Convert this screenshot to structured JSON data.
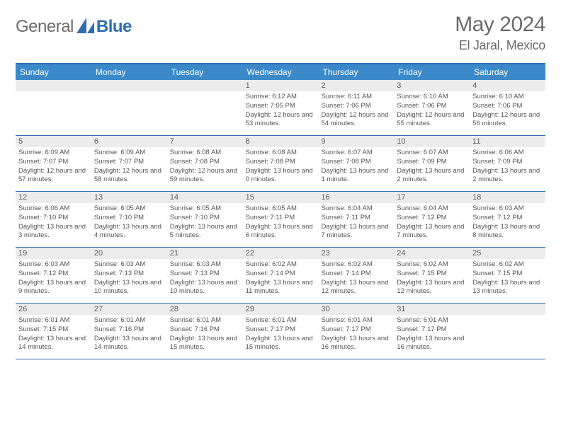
{
  "brand": {
    "text_a": "General",
    "text_b": "Blue"
  },
  "title": "May 2024",
  "location": "El Jaral, Mexico",
  "colors": {
    "header_bar": "#3b89c9",
    "rule": "#2f6fb0",
    "daynum_bg": "#ececec",
    "text_muted": "#6b6b6b",
    "cell_text": "#555555",
    "white": "#ffffff"
  },
  "typography": {
    "title_fontsize": 30,
    "location_fontsize": 18,
    "dayhead_fontsize": 12,
    "daynum_fontsize": 11,
    "info_fontsize": 9.5
  },
  "day_headers": [
    "Sunday",
    "Monday",
    "Tuesday",
    "Wednesday",
    "Thursday",
    "Friday",
    "Saturday"
  ],
  "weeks": [
    [
      {
        "n": "",
        "sr": "",
        "ss": "",
        "dl": ""
      },
      {
        "n": "",
        "sr": "",
        "ss": "",
        "dl": ""
      },
      {
        "n": "",
        "sr": "",
        "ss": "",
        "dl": ""
      },
      {
        "n": "1",
        "sr": "Sunrise: 6:12 AM",
        "ss": "Sunset: 7:05 PM",
        "dl": "Daylight: 12 hours and 53 minutes."
      },
      {
        "n": "2",
        "sr": "Sunrise: 6:11 AM",
        "ss": "Sunset: 7:06 PM",
        "dl": "Daylight: 12 hours and 54 minutes."
      },
      {
        "n": "3",
        "sr": "Sunrise: 6:10 AM",
        "ss": "Sunset: 7:06 PM",
        "dl": "Daylight: 12 hours and 55 minutes."
      },
      {
        "n": "4",
        "sr": "Sunrise: 6:10 AM",
        "ss": "Sunset: 7:06 PM",
        "dl": "Daylight: 12 hours and 56 minutes."
      }
    ],
    [
      {
        "n": "5",
        "sr": "Sunrise: 6:09 AM",
        "ss": "Sunset: 7:07 PM",
        "dl": "Daylight: 12 hours and 57 minutes."
      },
      {
        "n": "6",
        "sr": "Sunrise: 6:09 AM",
        "ss": "Sunset: 7:07 PM",
        "dl": "Daylight: 12 hours and 58 minutes."
      },
      {
        "n": "7",
        "sr": "Sunrise: 6:08 AM",
        "ss": "Sunset: 7:08 PM",
        "dl": "Daylight: 12 hours and 59 minutes."
      },
      {
        "n": "8",
        "sr": "Sunrise: 6:08 AM",
        "ss": "Sunset: 7:08 PM",
        "dl": "Daylight: 13 hours and 0 minutes."
      },
      {
        "n": "9",
        "sr": "Sunrise: 6:07 AM",
        "ss": "Sunset: 7:08 PM",
        "dl": "Daylight: 13 hours and 1 minute."
      },
      {
        "n": "10",
        "sr": "Sunrise: 6:07 AM",
        "ss": "Sunset: 7:09 PM",
        "dl": "Daylight: 13 hours and 2 minutes."
      },
      {
        "n": "11",
        "sr": "Sunrise: 6:06 AM",
        "ss": "Sunset: 7:09 PM",
        "dl": "Daylight: 13 hours and 2 minutes."
      }
    ],
    [
      {
        "n": "12",
        "sr": "Sunrise: 6:06 AM",
        "ss": "Sunset: 7:10 PM",
        "dl": "Daylight: 13 hours and 3 minutes."
      },
      {
        "n": "13",
        "sr": "Sunrise: 6:05 AM",
        "ss": "Sunset: 7:10 PM",
        "dl": "Daylight: 13 hours and 4 minutes."
      },
      {
        "n": "14",
        "sr": "Sunrise: 6:05 AM",
        "ss": "Sunset: 7:10 PM",
        "dl": "Daylight: 13 hours and 5 minutes."
      },
      {
        "n": "15",
        "sr": "Sunrise: 6:05 AM",
        "ss": "Sunset: 7:11 PM",
        "dl": "Daylight: 13 hours and 6 minutes."
      },
      {
        "n": "16",
        "sr": "Sunrise: 6:04 AM",
        "ss": "Sunset: 7:11 PM",
        "dl": "Daylight: 13 hours and 7 minutes."
      },
      {
        "n": "17",
        "sr": "Sunrise: 6:04 AM",
        "ss": "Sunset: 7:12 PM",
        "dl": "Daylight: 13 hours and 7 minutes."
      },
      {
        "n": "18",
        "sr": "Sunrise: 6:03 AM",
        "ss": "Sunset: 7:12 PM",
        "dl": "Daylight: 13 hours and 8 minutes."
      }
    ],
    [
      {
        "n": "19",
        "sr": "Sunrise: 6:03 AM",
        "ss": "Sunset: 7:12 PM",
        "dl": "Daylight: 13 hours and 9 minutes."
      },
      {
        "n": "20",
        "sr": "Sunrise: 6:03 AM",
        "ss": "Sunset: 7:13 PM",
        "dl": "Daylight: 13 hours and 10 minutes."
      },
      {
        "n": "21",
        "sr": "Sunrise: 6:03 AM",
        "ss": "Sunset: 7:13 PM",
        "dl": "Daylight: 13 hours and 10 minutes."
      },
      {
        "n": "22",
        "sr": "Sunrise: 6:02 AM",
        "ss": "Sunset: 7:14 PM",
        "dl": "Daylight: 13 hours and 11 minutes."
      },
      {
        "n": "23",
        "sr": "Sunrise: 6:02 AM",
        "ss": "Sunset: 7:14 PM",
        "dl": "Daylight: 13 hours and 12 minutes."
      },
      {
        "n": "24",
        "sr": "Sunrise: 6:02 AM",
        "ss": "Sunset: 7:15 PM",
        "dl": "Daylight: 13 hours and 12 minutes."
      },
      {
        "n": "25",
        "sr": "Sunrise: 6:02 AM",
        "ss": "Sunset: 7:15 PM",
        "dl": "Daylight: 13 hours and 13 minutes."
      }
    ],
    [
      {
        "n": "26",
        "sr": "Sunrise: 6:01 AM",
        "ss": "Sunset: 7:15 PM",
        "dl": "Daylight: 13 hours and 14 minutes."
      },
      {
        "n": "27",
        "sr": "Sunrise: 6:01 AM",
        "ss": "Sunset: 7:16 PM",
        "dl": "Daylight: 13 hours and 14 minutes."
      },
      {
        "n": "28",
        "sr": "Sunrise: 6:01 AM",
        "ss": "Sunset: 7:16 PM",
        "dl": "Daylight: 13 hours and 15 minutes."
      },
      {
        "n": "29",
        "sr": "Sunrise: 6:01 AM",
        "ss": "Sunset: 7:17 PM",
        "dl": "Daylight: 13 hours and 15 minutes."
      },
      {
        "n": "30",
        "sr": "Sunrise: 6:01 AM",
        "ss": "Sunset: 7:17 PM",
        "dl": "Daylight: 13 hours and 16 minutes."
      },
      {
        "n": "31",
        "sr": "Sunrise: 6:01 AM",
        "ss": "Sunset: 7:17 PM",
        "dl": "Daylight: 13 hours and 16 minutes."
      },
      {
        "n": "",
        "sr": "",
        "ss": "",
        "dl": ""
      }
    ]
  ]
}
